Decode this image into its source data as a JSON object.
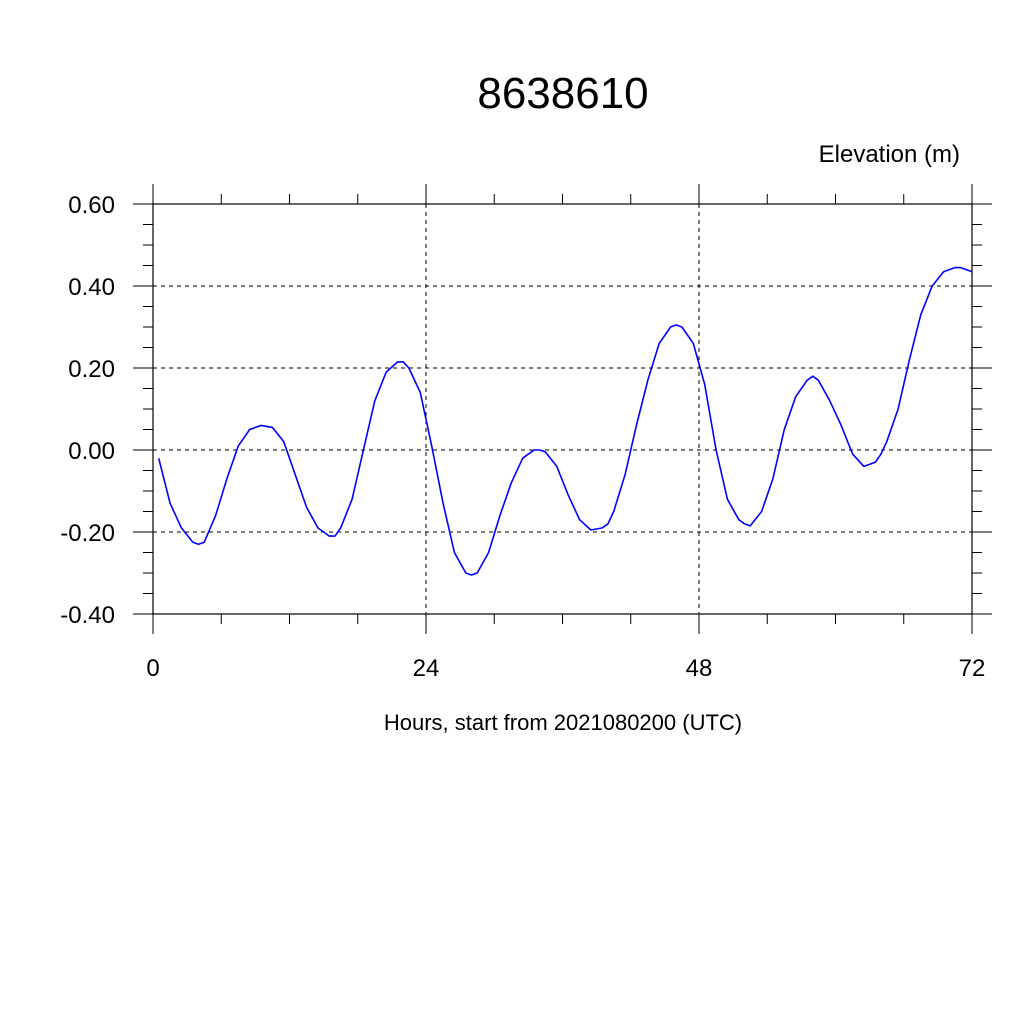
{
  "chart_data": {
    "type": "line",
    "title": "8638610",
    "units_label": "Elevation (m)",
    "xlabel": "Hours, start from 2021080200 (UTC)",
    "ylabel": "",
    "xlim": [
      0,
      72
    ],
    "ylim": [
      -0.4,
      0.6
    ],
    "x_ticks": [
      0,
      24,
      48,
      72
    ],
    "x_tick_labels": [
      "0",
      "24",
      "48",
      "72"
    ],
    "x_minor_step": 6,
    "y_ticks": [
      -0.4,
      -0.2,
      0.0,
      0.2,
      0.4,
      0.6
    ],
    "y_tick_labels": [
      "-0.40",
      "-0.20",
      "0.00",
      "0.20",
      "0.40",
      "0.60"
    ],
    "y_minor_step": 0.05,
    "grid": true,
    "legend": "none",
    "series": [
      {
        "color": "#0000ff",
        "x": [
          0.5,
          1.5,
          2.5,
          3.5,
          4.0,
          4.5,
          5.5,
          6.5,
          7.5,
          8.5,
          9.5,
          10.5,
          11.5,
          12.5,
          13.5,
          14.5,
          15.5,
          16.0,
          16.5,
          17.5,
          18.5,
          19.5,
          20.5,
          21.5,
          22.0,
          22.5,
          23.5,
          24.5,
          25.5,
          26.5,
          27.5,
          28.0,
          28.5,
          29.5,
          30.5,
          31.5,
          32.5,
          33.5,
          34.0,
          34.5,
          35.5,
          36.5,
          37.5,
          38.5,
          39.5,
          40.0,
          40.5,
          41.5,
          42.5,
          43.5,
          44.5,
          45.5,
          46.0,
          46.5,
          47.5,
          48.5,
          49.5,
          50.5,
          51.5,
          52.0,
          52.5,
          53.5,
          54.5,
          55.5,
          56.5,
          57.5,
          58.0,
          58.5,
          59.5,
          60.5,
          61.5,
          62.5,
          63.5,
          64.0,
          64.5,
          65.5,
          66.5,
          67.5,
          68.5,
          69.5,
          70.5,
          71.0,
          71.5,
          72.0
        ],
        "values": [
          -0.02,
          -0.13,
          -0.19,
          -0.225,
          -0.23,
          -0.225,
          -0.16,
          -0.07,
          0.01,
          0.05,
          0.06,
          0.055,
          0.02,
          -0.06,
          -0.14,
          -0.19,
          -0.21,
          -0.21,
          -0.19,
          -0.12,
          0.0,
          0.12,
          0.19,
          0.215,
          0.215,
          0.2,
          0.14,
          0.01,
          -0.13,
          -0.25,
          -0.3,
          -0.305,
          -0.3,
          -0.25,
          -0.16,
          -0.08,
          -0.02,
          0.0,
          0.0,
          -0.005,
          -0.04,
          -0.11,
          -0.17,
          -0.195,
          -0.19,
          -0.18,
          -0.15,
          -0.06,
          0.06,
          0.17,
          0.26,
          0.3,
          0.305,
          0.3,
          0.26,
          0.16,
          0.0,
          -0.12,
          -0.17,
          -0.18,
          -0.185,
          -0.15,
          -0.07,
          0.05,
          0.13,
          0.17,
          0.18,
          0.17,
          0.12,
          0.06,
          -0.01,
          -0.04,
          -0.03,
          -0.01,
          0.02,
          0.1,
          0.22,
          0.33,
          0.4,
          0.435,
          0.445,
          0.445,
          0.44,
          0.435
        ]
      }
    ]
  }
}
